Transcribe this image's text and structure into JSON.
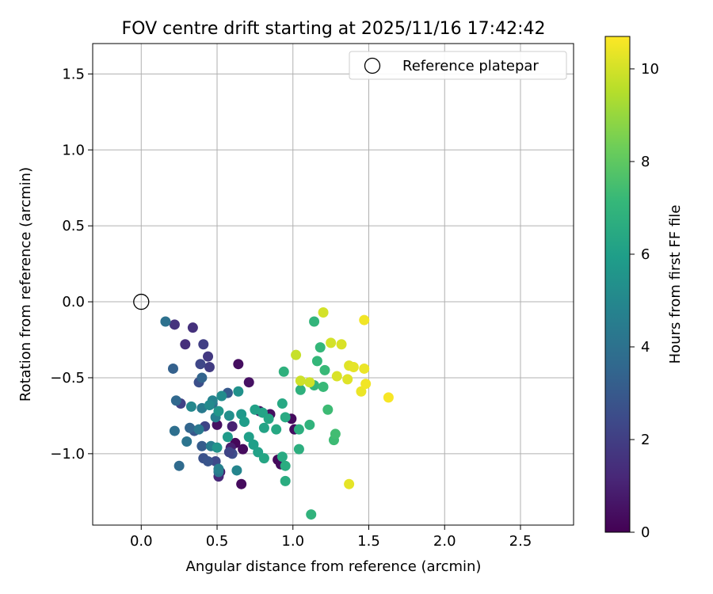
{
  "chart_data": {
    "type": "scatter",
    "title": "FOV centre drift starting at 2025/11/16 17:42:42",
    "xlabel": "Angular distance from reference (arcmin)",
    "ylabel": "Rotation from reference (arcmin)",
    "xlim": [
      -0.32,
      2.85
    ],
    "ylim": [
      -1.47,
      1.7
    ],
    "xticks": [
      0.0,
      0.5,
      1.0,
      1.5,
      2.0,
      2.5
    ],
    "xtick_labels": [
      "0.0",
      "0.5",
      "1.0",
      "1.5",
      "2.0",
      "2.5"
    ],
    "yticks": [
      1.5,
      1.0,
      0.5,
      0.0,
      -0.5,
      -1.0
    ],
    "ytick_labels": [
      "1.5",
      "1.0",
      "0.5",
      "0.0",
      "−0.5",
      "−1.0"
    ],
    "grid": true,
    "legend": {
      "position": "top-right",
      "entries": [
        "Reference platepar"
      ]
    },
    "reference_point": {
      "x": 0.0,
      "y": 0.0
    },
    "colorbar": {
      "label": "Hours from first FF file",
      "range": [
        0,
        10.7
      ],
      "ticks": [
        0,
        2,
        4,
        6,
        8,
        10
      ],
      "tick_labels": [
        "0",
        "2",
        "4",
        "6",
        "8",
        "10"
      ],
      "colormap": [
        "#440154",
        "#482878",
        "#3e4989",
        "#31688e",
        "#26828e",
        "#1f9e89",
        "#35b779",
        "#6ece58",
        "#b5de2b",
        "#fde725"
      ]
    },
    "points": [
      {
        "x": 0.62,
        "y": -0.93,
        "t": 0.2
      },
      {
        "x": 0.66,
        "y": -1.2,
        "t": 0.3
      },
      {
        "x": 0.64,
        "y": -0.41,
        "t": 0.4
      },
      {
        "x": 0.71,
        "y": -0.53,
        "t": 0.5
      },
      {
        "x": 0.67,
        "y": -0.97,
        "t": 0.3
      },
      {
        "x": 0.85,
        "y": -0.74,
        "t": 0.4
      },
      {
        "x": 0.9,
        "y": -1.04,
        "t": 0.2
      },
      {
        "x": 0.92,
        "y": -1.07,
        "t": 0.3
      },
      {
        "x": 0.99,
        "y": -0.77,
        "t": 0.3
      },
      {
        "x": 1.01,
        "y": -0.84,
        "t": 0.4
      },
      {
        "x": 0.5,
        "y": -0.81,
        "t": 0.5
      },
      {
        "x": 0.78,
        "y": -0.72,
        "t": 0.6
      },
      {
        "x": 0.52,
        "y": -1.12,
        "t": 0.8
      },
      {
        "x": 0.59,
        "y": -0.96,
        "t": 0.9
      },
      {
        "x": 0.6,
        "y": -0.82,
        "t": 1.0
      },
      {
        "x": 0.51,
        "y": -1.15,
        "t": 1.2
      },
      {
        "x": 0.29,
        "y": -0.28,
        "t": 1.4
      },
      {
        "x": 0.34,
        "y": -0.17,
        "t": 1.5
      },
      {
        "x": 0.22,
        "y": -0.15,
        "t": 1.6
      },
      {
        "x": 0.44,
        "y": -0.36,
        "t": 1.8
      },
      {
        "x": 0.45,
        "y": -0.43,
        "t": 1.9
      },
      {
        "x": 0.41,
        "y": -0.28,
        "t": 2.0
      },
      {
        "x": 0.26,
        "y": -0.67,
        "t": 2.1
      },
      {
        "x": 0.42,
        "y": -0.82,
        "t": 2.2
      },
      {
        "x": 0.39,
        "y": -0.41,
        "t": 2.3
      },
      {
        "x": 0.49,
        "y": -1.05,
        "t": 2.4
      },
      {
        "x": 0.6,
        "y": -1.0,
        "t": 2.5
      },
      {
        "x": 0.58,
        "y": -0.99,
        "t": 2.2
      },
      {
        "x": 0.38,
        "y": -0.53,
        "t": 2.6
      },
      {
        "x": 0.41,
        "y": -1.03,
        "t": 2.7
      },
      {
        "x": 0.44,
        "y": -1.05,
        "t": 2.8
      },
      {
        "x": 0.35,
        "y": -0.85,
        "t": 2.9
      },
      {
        "x": 0.57,
        "y": -0.6,
        "t": 3.0
      },
      {
        "x": 0.4,
        "y": -0.95,
        "t": 3.1
      },
      {
        "x": 0.21,
        "y": -0.44,
        "t": 3.3
      },
      {
        "x": 0.4,
        "y": -0.5,
        "t": 3.4
      },
      {
        "x": 0.32,
        "y": -0.83,
        "t": 3.5
      },
      {
        "x": 0.23,
        "y": -0.65,
        "t": 3.6
      },
      {
        "x": 0.25,
        "y": -1.08,
        "t": 3.7
      },
      {
        "x": 0.47,
        "y": -0.67,
        "t": 3.8
      },
      {
        "x": 0.22,
        "y": -0.85,
        "t": 3.9
      },
      {
        "x": 0.16,
        "y": -0.13,
        "t": 4.0
      },
      {
        "x": 0.3,
        "y": -0.92,
        "t": 4.1
      },
      {
        "x": 0.51,
        "y": -1.12,
        "t": 4.2
      },
      {
        "x": 0.38,
        "y": -0.84,
        "t": 4.3
      },
      {
        "x": 0.4,
        "y": -0.7,
        "t": 4.4
      },
      {
        "x": 0.46,
        "y": -0.95,
        "t": 4.5
      },
      {
        "x": 0.49,
        "y": -0.76,
        "t": 4.6
      },
      {
        "x": 0.51,
        "y": -1.1,
        "t": 4.7
      },
      {
        "x": 0.47,
        "y": -0.65,
        "t": 4.8
      },
      {
        "x": 0.63,
        "y": -1.11,
        "t": 4.9
      },
      {
        "x": 0.33,
        "y": -0.69,
        "t": 5.0
      },
      {
        "x": 0.45,
        "y": -0.68,
        "t": 5.1
      },
      {
        "x": 0.53,
        "y": -0.62,
        "t": 5.2
      },
      {
        "x": 0.58,
        "y": -0.75,
        "t": 5.3
      },
      {
        "x": 0.64,
        "y": -0.59,
        "t": 5.4
      },
      {
        "x": 0.5,
        "y": -0.96,
        "t": 5.5
      },
      {
        "x": 0.51,
        "y": -0.72,
        "t": 5.6
      },
      {
        "x": 0.66,
        "y": -0.74,
        "t": 5.7
      },
      {
        "x": 0.57,
        "y": -0.89,
        "t": 5.8
      },
      {
        "x": 0.68,
        "y": -0.79,
        "t": 5.9
      },
      {
        "x": 0.71,
        "y": -0.89,
        "t": 6.0
      },
      {
        "x": 0.74,
        "y": -0.94,
        "t": 6.0
      },
      {
        "x": 0.77,
        "y": -0.99,
        "t": 6.1
      },
      {
        "x": 0.75,
        "y": -0.71,
        "t": 6.1
      },
      {
        "x": 0.8,
        "y": -0.73,
        "t": 6.2
      },
      {
        "x": 0.81,
        "y": -0.83,
        "t": 6.2
      },
      {
        "x": 0.81,
        "y": -1.03,
        "t": 6.3
      },
      {
        "x": 0.84,
        "y": -0.77,
        "t": 6.3
      },
      {
        "x": 0.89,
        "y": -0.84,
        "t": 6.4
      },
      {
        "x": 0.93,
        "y": -0.67,
        "t": 6.4
      },
      {
        "x": 0.95,
        "y": -0.76,
        "t": 6.5
      },
      {
        "x": 0.93,
        "y": -1.02,
        "t": 6.5
      },
      {
        "x": 0.95,
        "y": -1.08,
        "t": 6.6
      },
      {
        "x": 0.95,
        "y": -1.18,
        "t": 6.6
      },
      {
        "x": 1.04,
        "y": -0.84,
        "t": 6.7
      },
      {
        "x": 1.04,
        "y": -0.97,
        "t": 6.7
      },
      {
        "x": 0.94,
        "y": -0.46,
        "t": 6.8
      },
      {
        "x": 1.05,
        "y": -0.58,
        "t": 6.8
      },
      {
        "x": 1.11,
        "y": -0.81,
        "t": 6.9
      },
      {
        "x": 1.12,
        "y": -1.4,
        "t": 6.9
      },
      {
        "x": 1.14,
        "y": -0.13,
        "t": 7.0
      },
      {
        "x": 1.14,
        "y": -0.55,
        "t": 7.0
      },
      {
        "x": 1.16,
        "y": -0.39,
        "t": 7.1
      },
      {
        "x": 1.18,
        "y": -0.3,
        "t": 7.1
      },
      {
        "x": 1.2,
        "y": -0.56,
        "t": 7.2
      },
      {
        "x": 1.21,
        "y": -0.45,
        "t": 7.2
      },
      {
        "x": 1.23,
        "y": -0.71,
        "t": 7.3
      },
      {
        "x": 1.27,
        "y": -0.91,
        "t": 7.3
      },
      {
        "x": 1.28,
        "y": -0.87,
        "t": 7.4
      },
      {
        "x": 1.02,
        "y": -0.35,
        "t": 9.8
      },
      {
        "x": 1.05,
        "y": -0.52,
        "t": 9.9
      },
      {
        "x": 1.11,
        "y": -0.53,
        "t": 9.9
      },
      {
        "x": 1.2,
        "y": -0.07,
        "t": 10.0
      },
      {
        "x": 1.25,
        "y": -0.27,
        "t": 10.0
      },
      {
        "x": 1.29,
        "y": -0.49,
        "t": 10.1
      },
      {
        "x": 1.32,
        "y": -0.28,
        "t": 10.1
      },
      {
        "x": 1.36,
        "y": -0.51,
        "t": 10.2
      },
      {
        "x": 1.37,
        "y": -0.42,
        "t": 10.2
      },
      {
        "x": 1.4,
        "y": -0.43,
        "t": 10.3
      },
      {
        "x": 1.37,
        "y": -1.2,
        "t": 10.3
      },
      {
        "x": 1.45,
        "y": -0.59,
        "t": 10.4
      },
      {
        "x": 1.47,
        "y": -0.44,
        "t": 10.4
      },
      {
        "x": 1.47,
        "y": -0.12,
        "t": 10.5
      },
      {
        "x": 1.48,
        "y": -0.54,
        "t": 10.5
      },
      {
        "x": 1.63,
        "y": -0.63,
        "t": 10.6
      }
    ]
  }
}
